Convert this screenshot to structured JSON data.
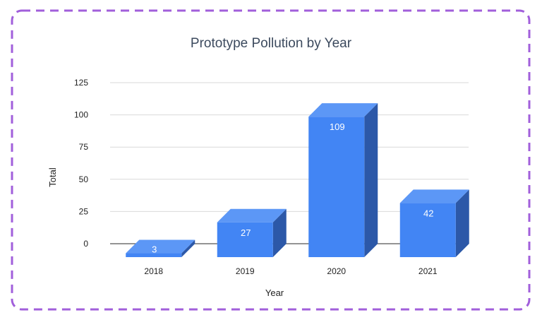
{
  "chart_data": {
    "type": "bar",
    "title": "Prototype Pollution by Year",
    "xlabel": "Year",
    "ylabel": "Total",
    "categories": [
      "2018",
      "2019",
      "2020",
      "2021"
    ],
    "values": [
      3,
      27,
      109,
      42
    ],
    "data_labels": [
      "3",
      "27",
      "109",
      "42"
    ],
    "y_ticks": [
      "0",
      "25",
      "50",
      "75",
      "100",
      "125"
    ],
    "ylim": [
      0,
      125
    ],
    "grid": true,
    "legend": "none",
    "bar_style": "3d"
  },
  "colors": {
    "bar_front": "#4285f4",
    "bar_top": "#5c97f6",
    "bar_side": "#2c58a8",
    "grid": "#d9d9d9",
    "baseline": "#555555",
    "title": "#3c4a5e",
    "text": "#222222",
    "frame_border": "#a15fdb"
  }
}
